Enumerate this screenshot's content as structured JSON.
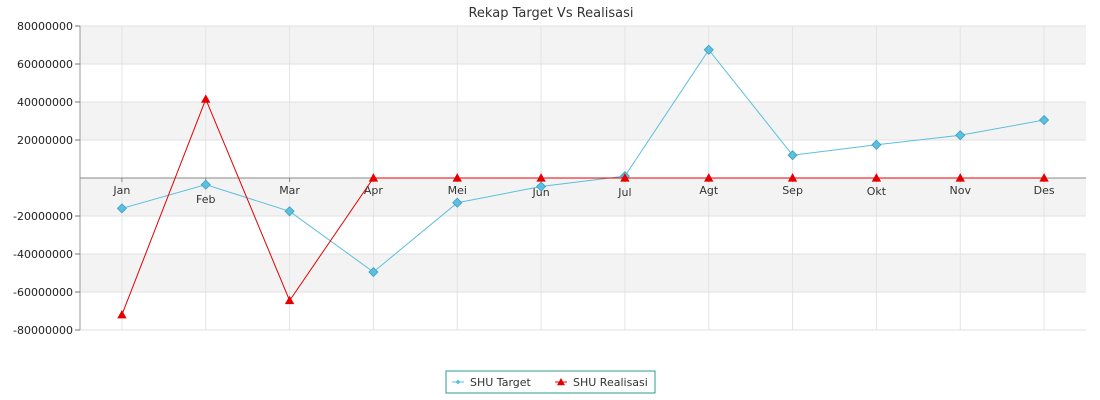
{
  "chart_data": {
    "type": "line",
    "title": "Rekap Target Vs Realisasi",
    "xlabel": "",
    "ylabel": "",
    "categories": [
      "Jan",
      "Feb",
      "Mar",
      "Apr",
      "Mei",
      "Jun",
      "Jul",
      "Agt",
      "Sep",
      "Okt",
      "Nov",
      "Des"
    ],
    "ylim": [
      -80000000,
      80000000
    ],
    "yticks": [
      80000000,
      60000000,
      40000000,
      20000000,
      -20000000,
      -40000000,
      -60000000,
      -80000000
    ],
    "ytick_labels": [
      "80000000",
      "60000000",
      "40000000",
      "20000000",
      "-20000000",
      "-40000000",
      "-60000000",
      "-80000000"
    ],
    "grid": true,
    "legend_position": "bottom-center",
    "series": [
      {
        "name": "SHU Target",
        "color": "#5bbfdf",
        "marker": "diamond",
        "values": [
          -16000000,
          -3500000,
          -17500000,
          -49500000,
          -13000000,
          -4500000,
          1000000,
          67500000,
          12000000,
          17500000,
          22500000,
          30500000
        ]
      },
      {
        "name": "SHU Realisasi",
        "color": "#e60000",
        "marker": "triangle",
        "values": [
          -72000000,
          41500000,
          -64500000,
          0,
          0,
          0,
          0,
          0,
          0,
          0,
          0,
          0
        ]
      }
    ]
  }
}
